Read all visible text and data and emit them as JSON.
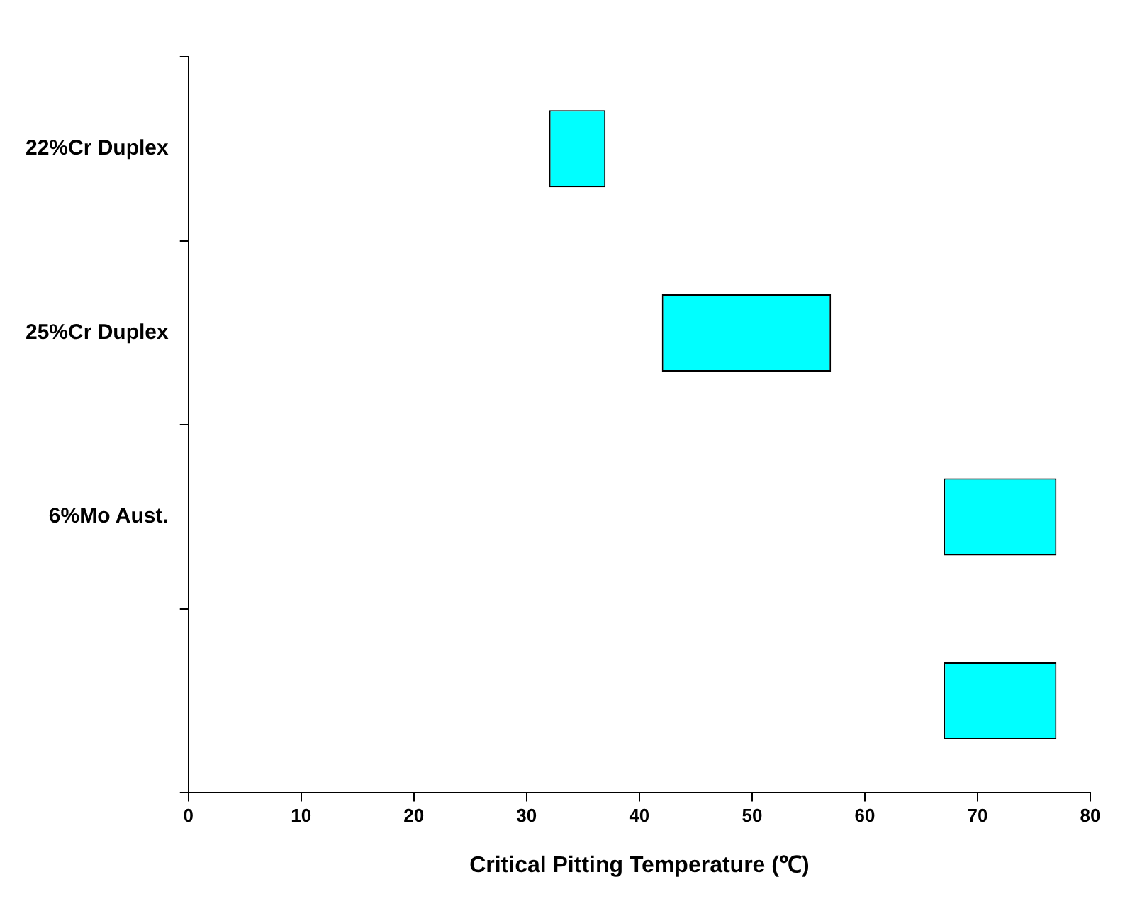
{
  "chart_data": {
    "type": "bar",
    "orientation": "horizontal",
    "xlabel": "Critical Pitting Temperature (℃)",
    "categories": [
      "22%Cr Duplex",
      "25%Cr Duplex",
      "6%Mo Aust.",
      null
    ],
    "base": [
      32,
      42,
      67,
      67
    ],
    "values": [
      5,
      15,
      10,
      10
    ],
    "color": "#00ffff",
    "xlim": [
      0,
      80
    ],
    "xticks": [
      0,
      10,
      20,
      30,
      40,
      50,
      60,
      70,
      80
    ],
    "grid": false,
    "legend": false
  }
}
